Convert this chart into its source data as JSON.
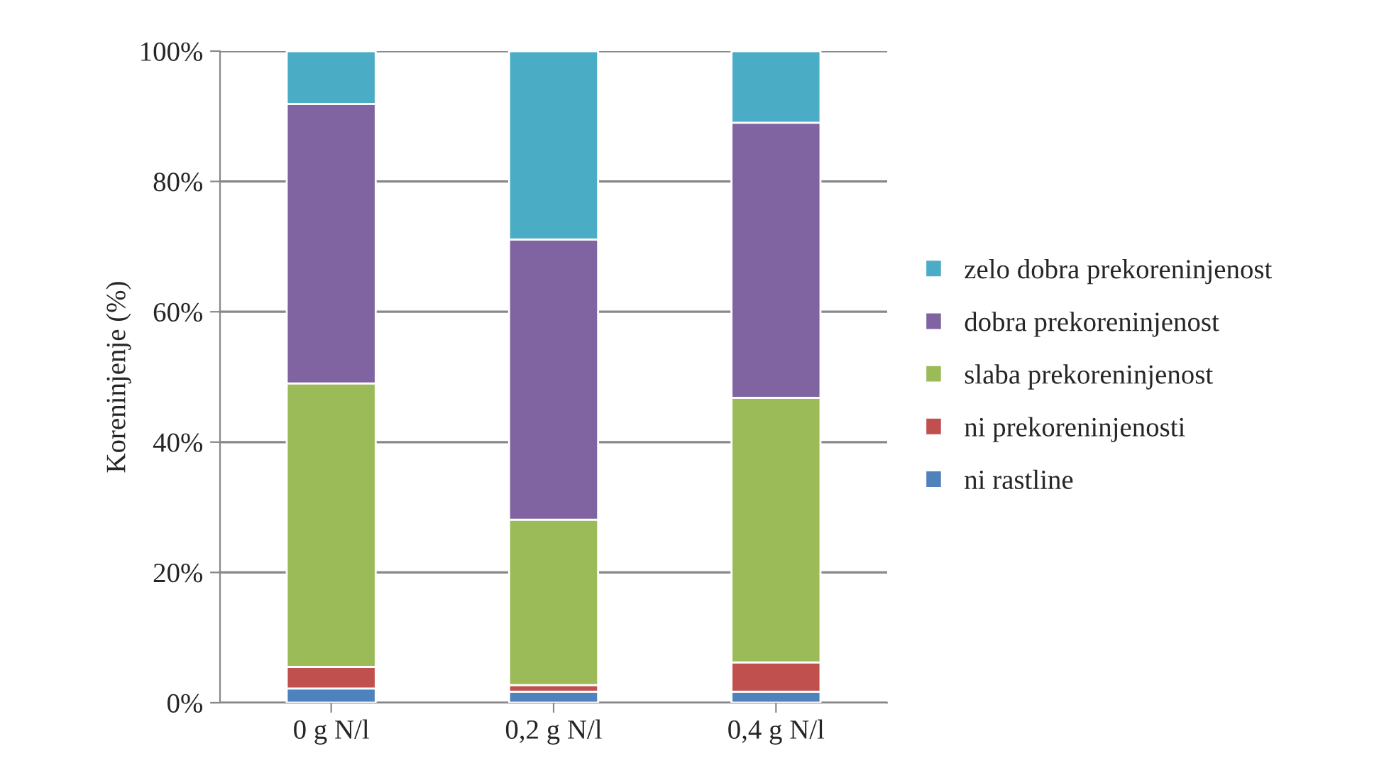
{
  "chart_data": {
    "type": "bar",
    "stacked": true,
    "ylabel": "Koreninjenje (%)",
    "categories": [
      "0 g N/l",
      "0,2 g N/l",
      "0,4 g N/l"
    ],
    "series": [
      {
        "name": "ni rastline",
        "color": "#4f81bd",
        "values": [
          2.2,
          1.7,
          1.7
        ]
      },
      {
        "name": "ni prekoreninjenosti",
        "color": "#c0504d",
        "values": [
          3.3,
          1.0,
          4.5
        ]
      },
      {
        "name": "slaba prekoreninjenost",
        "color": "#9bbb59",
        "values": [
          43.5,
          25.4,
          40.6
        ]
      },
      {
        "name": "dobra prekoreninjenost",
        "color": "#8064a2",
        "values": [
          42.9,
          43.0,
          42.2
        ]
      },
      {
        "name": "zelo dobra prekoreninjenost",
        "color": "#4bacc6",
        "values": [
          8.1,
          28.9,
          11.0
        ]
      }
    ],
    "ylim": [
      0,
      100
    ],
    "yticks": [
      {
        "value": 0,
        "label": "0%"
      },
      {
        "value": 20,
        "label": "20%"
      },
      {
        "value": 40,
        "label": "40%"
      },
      {
        "value": 60,
        "label": "60%"
      },
      {
        "value": 80,
        "label": "80%"
      },
      {
        "value": 100,
        "label": "100%"
      }
    ],
    "grid": "y",
    "legend": "right"
  }
}
